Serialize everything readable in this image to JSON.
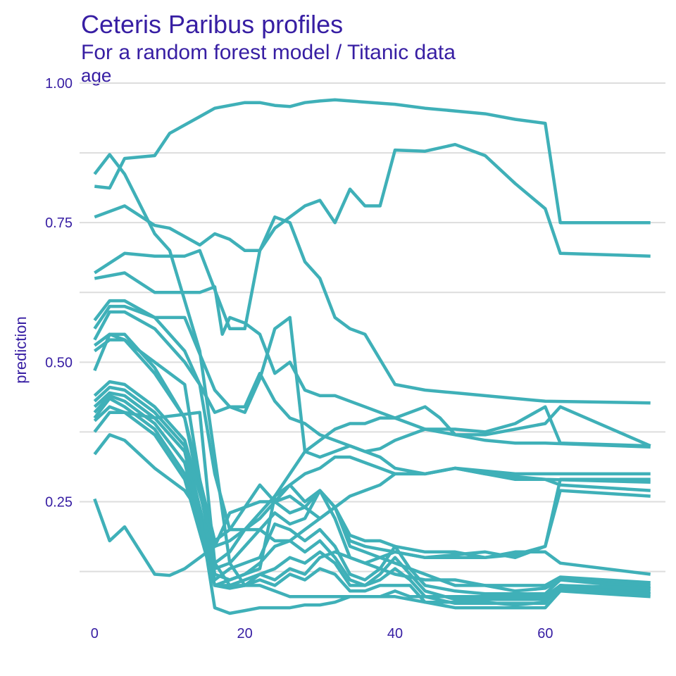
{
  "chart_data": {
    "type": "line",
    "title": "Ceteris Paribus profiles",
    "subtitle": "For a random forest model / Titanic data",
    "panel": "age",
    "xlabel": "",
    "ylabel": "prediction",
    "xlim": [
      -2,
      76
    ],
    "ylim": [
      0.045,
      1.0
    ],
    "x_ticks": [
      0,
      20,
      40,
      60
    ],
    "x_tick_labels": [
      "0",
      "20",
      "40",
      "60"
    ],
    "y_major_ticks": [
      0.25,
      0.5,
      0.75,
      1.0
    ],
    "y_tick_labels": [
      "0.25",
      "0.50",
      "0.75",
      "1.00"
    ],
    "y_minor_grid": [
      0.125,
      0.375,
      0.625,
      0.875
    ],
    "grid": true,
    "legend": "none",
    "colors": {
      "line": "#3fb0b8",
      "grid": "#dddddd",
      "text": "#371ea3"
    },
    "series": [
      {
        "x": [
          0,
          2,
          4,
          8,
          10,
          14,
          18,
          20,
          22,
          24,
          26,
          28,
          30,
          32,
          34,
          36,
          40,
          44,
          48,
          52,
          56,
          60,
          62,
          74
        ],
        "values": [
          0.837,
          0.872,
          0.837,
          0.73,
          0.7,
          0.52,
          0.14,
          0.1,
          0.12,
          0.11,
          0.13,
          0.12,
          0.15,
          0.16,
          0.15,
          0.14,
          0.16,
          0.15,
          0.15,
          0.15,
          0.155,
          0.17,
          0.29,
          0.29
        ]
      },
      {
        "x": [
          0,
          2,
          4,
          8,
          10,
          14,
          16,
          18,
          20,
          22,
          24,
          26,
          28,
          30,
          32,
          34,
          36,
          40,
          44,
          48,
          52,
          56,
          60,
          62,
          74
        ],
        "values": [
          0.815,
          0.812,
          0.865,
          0.87,
          0.91,
          0.94,
          0.955,
          0.96,
          0.965,
          0.965,
          0.96,
          0.958,
          0.965,
          0.968,
          0.97,
          0.968,
          0.966,
          0.962,
          0.955,
          0.95,
          0.945,
          0.935,
          0.928,
          0.75,
          0.75
        ]
      },
      {
        "x": [
          0,
          4,
          8,
          10,
          14,
          16,
          18,
          20,
          22,
          24,
          26,
          28,
          30,
          32,
          34,
          36,
          38,
          40,
          44,
          48,
          52,
          56,
          60,
          62,
          74
        ],
        "values": [
          0.76,
          0.78,
          0.745,
          0.74,
          0.71,
          0.73,
          0.72,
          0.7,
          0.7,
          0.74,
          0.76,
          0.78,
          0.79,
          0.75,
          0.81,
          0.78,
          0.78,
          0.88,
          0.878,
          0.89,
          0.87,
          0.82,
          0.775,
          0.695,
          0.69
        ]
      },
      {
        "x": [
          0,
          4,
          8,
          12,
          14,
          16,
          18,
          20,
          22,
          24,
          26,
          28,
          30,
          32,
          34,
          36,
          40,
          44,
          48,
          52,
          56,
          60,
          74
        ],
        "values": [
          0.66,
          0.695,
          0.69,
          0.69,
          0.7,
          0.63,
          0.56,
          0.56,
          0.7,
          0.76,
          0.75,
          0.68,
          0.65,
          0.58,
          0.56,
          0.55,
          0.46,
          0.45,
          0.445,
          0.44,
          0.435,
          0.43,
          0.427
        ]
      },
      {
        "x": [
          0,
          4,
          8,
          14,
          16,
          17,
          18,
          20,
          22,
          24,
          26,
          28,
          30,
          32,
          34,
          36,
          38,
          40,
          44,
          48,
          52,
          56,
          60,
          62,
          74
        ],
        "values": [
          0.65,
          0.66,
          0.625,
          0.625,
          0.635,
          0.55,
          0.58,
          0.57,
          0.55,
          0.48,
          0.5,
          0.45,
          0.44,
          0.44,
          0.43,
          0.42,
          0.41,
          0.4,
          0.38,
          0.38,
          0.375,
          0.39,
          0.42,
          0.355,
          0.35
        ]
      },
      {
        "x": [
          0,
          2,
          4,
          8,
          12,
          16,
          18,
          20,
          22,
          24,
          26,
          28,
          30,
          32,
          34,
          36,
          38,
          40,
          44,
          48,
          52,
          56,
          60,
          74
        ],
        "values": [
          0.575,
          0.61,
          0.61,
          0.58,
          0.58,
          0.45,
          0.42,
          0.42,
          0.48,
          0.43,
          0.4,
          0.39,
          0.37,
          0.36,
          0.35,
          0.34,
          0.345,
          0.36,
          0.38,
          0.37,
          0.36,
          0.355,
          0.355,
          0.348
        ]
      },
      {
        "x": [
          0,
          2,
          4,
          8,
          12,
          14,
          16,
          18,
          20,
          22,
          24,
          26,
          28,
          30,
          32,
          34,
          36,
          38,
          40,
          44,
          48,
          52,
          56,
          60,
          62,
          74
        ],
        "values": [
          0.56,
          0.6,
          0.6,
          0.58,
          0.52,
          0.46,
          0.41,
          0.42,
          0.41,
          0.47,
          0.56,
          0.58,
          0.34,
          0.33,
          0.34,
          0.35,
          0.34,
          0.33,
          0.31,
          0.3,
          0.31,
          0.305,
          0.3,
          0.3,
          0.3,
          0.3
        ]
      },
      {
        "x": [
          0,
          2,
          4,
          8,
          12,
          14,
          16,
          18,
          20,
          22,
          24,
          26,
          28,
          30,
          32,
          34,
          36,
          38,
          40,
          44,
          48,
          52,
          56,
          60,
          74
        ],
        "values": [
          0.54,
          0.59,
          0.59,
          0.56,
          0.5,
          0.46,
          0.3,
          0.2,
          0.2,
          0.23,
          0.26,
          0.28,
          0.3,
          0.31,
          0.33,
          0.33,
          0.32,
          0.31,
          0.3,
          0.3,
          0.31,
          0.3,
          0.295,
          0.29,
          0.285
        ]
      },
      {
        "x": [
          0,
          2,
          4,
          8,
          12,
          16,
          18,
          20,
          22,
          24,
          26,
          28,
          30,
          32,
          34,
          36,
          38,
          40,
          44,
          46,
          48,
          52,
          56,
          60,
          62,
          74
        ],
        "values": [
          0.53,
          0.55,
          0.54,
          0.5,
          0.46,
          0.12,
          0.11,
          0.12,
          0.13,
          0.26,
          0.3,
          0.34,
          0.36,
          0.38,
          0.39,
          0.39,
          0.4,
          0.4,
          0.42,
          0.4,
          0.37,
          0.37,
          0.38,
          0.39,
          0.42,
          0.35
        ]
      },
      {
        "x": [
          0,
          2,
          4,
          8,
          12,
          16,
          18,
          20,
          22,
          24,
          26,
          28,
          30,
          32,
          34,
          36,
          38,
          40,
          44,
          48,
          52,
          56,
          60,
          62,
          74
        ],
        "values": [
          0.52,
          0.54,
          0.54,
          0.48,
          0.4,
          0.14,
          0.16,
          0.2,
          0.22,
          0.25,
          0.23,
          0.24,
          0.22,
          0.24,
          0.26,
          0.27,
          0.28,
          0.3,
          0.3,
          0.31,
          0.3,
          0.29,
          0.29,
          0.28,
          0.27
        ]
      },
      {
        "x": [
          0,
          2,
          4,
          8,
          12,
          16,
          18,
          20,
          22,
          24,
          26,
          28,
          30,
          32,
          34,
          36,
          38,
          40,
          44,
          48,
          52,
          56,
          60,
          62,
          74
        ],
        "values": [
          0.485,
          0.55,
          0.55,
          0.49,
          0.4,
          0.18,
          0.2,
          0.24,
          0.25,
          0.25,
          0.28,
          0.25,
          0.27,
          0.24,
          0.18,
          0.17,
          0.165,
          0.16,
          0.15,
          0.155,
          0.16,
          0.15,
          0.17,
          0.27,
          0.26
        ]
      },
      {
        "x": [
          0,
          2,
          4,
          8,
          12,
          16,
          18,
          20,
          22,
          24,
          26,
          28,
          30,
          32,
          34,
          36,
          38,
          40,
          44,
          48,
          52,
          56,
          60,
          62,
          74
        ],
        "values": [
          0.44,
          0.465,
          0.46,
          0.42,
          0.36,
          0.17,
          0.23,
          0.24,
          0.28,
          0.25,
          0.26,
          0.24,
          0.27,
          0.22,
          0.15,
          0.14,
          0.13,
          0.12,
          0.11,
          0.11,
          0.1,
          0.1,
          0.1,
          0.115,
          0.105
        ]
      },
      {
        "x": [
          0,
          2,
          4,
          8,
          12,
          16,
          18,
          20,
          22,
          24,
          26,
          28,
          30,
          32,
          34,
          36,
          38,
          40,
          44,
          48,
          52,
          56,
          60,
          62,
          74
        ],
        "values": [
          0.43,
          0.455,
          0.45,
          0.41,
          0.35,
          0.13,
          0.14,
          0.17,
          0.2,
          0.23,
          0.21,
          0.22,
          0.27,
          0.24,
          0.17,
          0.16,
          0.15,
          0.14,
          0.12,
          0.1,
          0.1,
          0.09,
          0.095,
          0.11,
          0.1
        ]
      },
      {
        "x": [
          0,
          2,
          4,
          8,
          12,
          16,
          18,
          20,
          22,
          24,
          26,
          28,
          30,
          32,
          34,
          36,
          38,
          40,
          42,
          44,
          48,
          52,
          56,
          60,
          62,
          74
        ],
        "values": [
          0.42,
          0.445,
          0.44,
          0.4,
          0.34,
          0.11,
          0.13,
          0.14,
          0.15,
          0.21,
          0.2,
          0.18,
          0.2,
          0.17,
          0.12,
          0.11,
          0.13,
          0.17,
          0.13,
          0.1,
          0.09,
          0.085,
          0.085,
          0.085,
          0.11,
          0.095
        ]
      },
      {
        "x": [
          0,
          2,
          4,
          8,
          12,
          16,
          18,
          20,
          22,
          24,
          26,
          28,
          30,
          32,
          34,
          36,
          38,
          40,
          42,
          44,
          48,
          52,
          56,
          60,
          62,
          74
        ],
        "values": [
          0.41,
          0.44,
          0.43,
          0.39,
          0.32,
          0.1,
          0.11,
          0.12,
          0.14,
          0.17,
          0.18,
          0.16,
          0.18,
          0.15,
          0.11,
          0.1,
          0.12,
          0.15,
          0.12,
          0.09,
          0.075,
          0.075,
          0.075,
          0.075,
          0.1,
          0.09
        ]
      },
      {
        "x": [
          0,
          2,
          4,
          8,
          12,
          16,
          18,
          20,
          22,
          24,
          26,
          28,
          30,
          32,
          34,
          36,
          38,
          40,
          42,
          44,
          48,
          52,
          56,
          60,
          62,
          74
        ],
        "values": [
          0.4,
          0.435,
          0.42,
          0.38,
          0.3,
          0.1,
          0.1,
          0.11,
          0.12,
          0.13,
          0.15,
          0.14,
          0.16,
          0.14,
          0.1,
          0.1,
          0.11,
          0.13,
          0.11,
          0.08,
          0.068,
          0.068,
          0.068,
          0.068,
          0.1,
          0.085
        ]
      },
      {
        "x": [
          0,
          2,
          4,
          8,
          12,
          16,
          18,
          20,
          22,
          24,
          26,
          28,
          30,
          32,
          34,
          36,
          38,
          40,
          42,
          44,
          48,
          52,
          56,
          60,
          62,
          74
        ],
        "values": [
          0.395,
          0.42,
          0.41,
          0.37,
          0.29,
          0.1,
          0.095,
          0.1,
          0.11,
          0.1,
          0.12,
          0.11,
          0.13,
          0.12,
          0.09,
          0.09,
          0.1,
          0.1,
          0.1,
          0.07,
          0.06,
          0.06,
          0.06,
          0.06,
          0.09,
          0.08
        ]
      },
      {
        "x": [
          0,
          2,
          4,
          8,
          14,
          16,
          18,
          20,
          22,
          24,
          26,
          28,
          30,
          32,
          34,
          36,
          38,
          40,
          42,
          44,
          48,
          52,
          56,
          60,
          62,
          74
        ],
        "values": [
          0.375,
          0.41,
          0.41,
          0.4,
          0.41,
          0.14,
          0.1,
          0.1,
          0.1,
          0.09,
          0.08,
          0.08,
          0.08,
          0.08,
          0.08,
          0.08,
          0.08,
          0.09,
          0.08,
          0.08,
          0.08,
          0.08,
          0.08,
          0.08,
          0.1,
          0.095
        ]
      },
      {
        "x": [
          0,
          2,
          4,
          8,
          12,
          14,
          16,
          18,
          20,
          22,
          24,
          26,
          28,
          30,
          32,
          34,
          36,
          40,
          44,
          48,
          52,
          56,
          60,
          62,
          74
        ],
        "values": [
          0.335,
          0.37,
          0.36,
          0.31,
          0.27,
          0.23,
          0.06,
          0.05,
          0.055,
          0.06,
          0.06,
          0.06,
          0.065,
          0.065,
          0.07,
          0.08,
          0.08,
          0.08,
          0.07,
          0.07,
          0.07,
          0.065,
          0.07,
          0.095,
          0.085
        ]
      },
      {
        "x": [
          0,
          2,
          4,
          8,
          10,
          12,
          14,
          16,
          18,
          20,
          22,
          24,
          26,
          28,
          30,
          32,
          34,
          36,
          38,
          40,
          44,
          48,
          52,
          56,
          60,
          62,
          74
        ],
        "values": [
          0.255,
          0.18,
          0.205,
          0.12,
          0.118,
          0.13,
          0.15,
          0.17,
          0.18,
          0.2,
          0.2,
          0.18,
          0.18,
          0.2,
          0.22,
          0.24,
          0.19,
          0.18,
          0.18,
          0.17,
          0.16,
          0.16,
          0.15,
          0.16,
          0.16,
          0.14,
          0.12
        ]
      }
    ]
  }
}
